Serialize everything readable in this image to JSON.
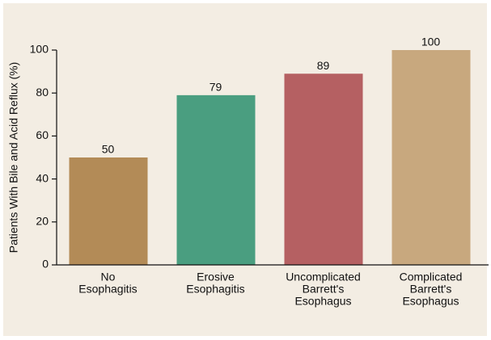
{
  "chart_data": {
    "type": "bar",
    "y_label": "Patients With Bile and Acid Reflux (%)",
    "categories": [
      [
        "No",
        "Esophagitis"
      ],
      [
        "Erosive",
        "Esophagitis"
      ],
      [
        "Uncomplicated",
        "Barrett's",
        "Esophagus"
      ],
      [
        "Complicated",
        "Barrett's",
        "Esophagus"
      ]
    ],
    "values": [
      50,
      79,
      89,
      100
    ],
    "colors": [
      "#b38b57",
      "#4a9e80",
      "#b56062",
      "#c8a87e"
    ],
    "ylim": [
      0,
      100
    ],
    "yticks": [
      0,
      20,
      40,
      60,
      80,
      100
    ],
    "grid": false
  }
}
